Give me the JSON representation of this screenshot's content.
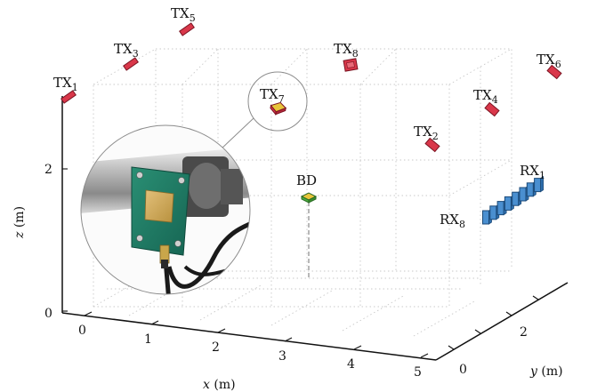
{
  "axes": {
    "x": {
      "label_var": "x",
      "label_unit": "(m)",
      "ticks": [
        "0",
        "1",
        "2",
        "3",
        "4",
        "5"
      ]
    },
    "y": {
      "label_var": "y",
      "label_unit": "(m)",
      "ticks": [
        "0",
        "2"
      ]
    },
    "z": {
      "label_var": "z",
      "label_unit": "(m)",
      "ticks": [
        "0",
        "2"
      ]
    }
  },
  "transmitters": [
    {
      "base": "TX",
      "sub": "1"
    },
    {
      "base": "TX",
      "sub": "2"
    },
    {
      "base": "TX",
      "sub": "3"
    },
    {
      "base": "TX",
      "sub": "4"
    },
    {
      "base": "TX",
      "sub": "5"
    },
    {
      "base": "TX",
      "sub": "6"
    },
    {
      "base": "TX",
      "sub": "7"
    },
    {
      "base": "TX",
      "sub": "8"
    }
  ],
  "receivers": [
    {
      "base": "RX",
      "sub": "1"
    },
    {
      "base": "RX",
      "sub": "8"
    }
  ],
  "bd": {
    "label": "BD"
  },
  "colors": {
    "tx_fill": "#d9374a",
    "tx_edge": "#7a1422",
    "rx_fill": "#4a8fd0",
    "rx_edge": "#1c4a78",
    "bd_fill": "#4caf3f",
    "bd_top": "#e8c43a",
    "pcb": "#1f7a63"
  }
}
